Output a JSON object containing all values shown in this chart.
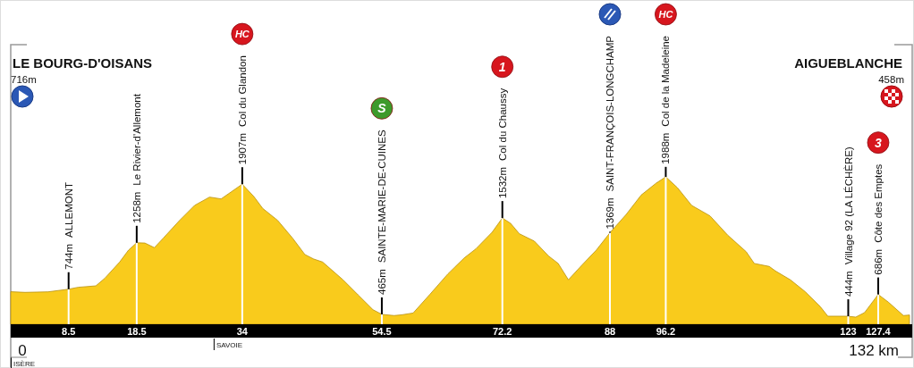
{
  "chart_data": {
    "type": "area",
    "color": "#f9cb1c",
    "x": [
      0,
      2.1,
      5.5,
      8.5,
      9.9,
      12.5,
      13.8,
      16.0,
      17.3,
      18.5,
      19.7,
      21.1,
      22.4,
      24.8,
      27.0,
      29.2,
      30.9,
      34,
      35.7,
      37.0,
      39.2,
      41.4,
      43.2,
      44.5,
      45.8,
      48.8,
      51.0,
      53.2,
      54.5,
      56.3,
      57.4,
      59.1,
      61.6,
      64.2,
      66.6,
      68.3,
      70.7,
      72.2,
      73.4,
      74.7,
      76.9,
      79.0,
      80.4,
      81.9,
      83.9,
      86.0,
      88,
      90.4,
      92.6,
      94.8,
      96.2,
      97.9,
      100.0,
      102.7,
      105.3,
      108.0,
      109.2,
      111.4,
      112.3,
      114.5,
      116.7,
      118.9,
      120.0,
      122.4,
      123,
      124.1,
      125.4,
      127.4,
      128.9,
      131.1,
      132
    ],
    "values": [
      716,
      709,
      715,
      744,
      765,
      781,
      864,
      1045,
      1177,
      1258,
      1255,
      1204,
      1309,
      1506,
      1672,
      1764,
      1744,
      1907,
      1771,
      1639,
      1506,
      1309,
      1128,
      1078,
      1045,
      848,
      682,
      517,
      465,
      452,
      460,
      480,
      690,
      913,
      1090,
      1190,
      1375,
      1532,
      1474,
      1358,
      1276,
      1111,
      1029,
      848,
      1012,
      1177,
      1369,
      1573,
      1787,
      1919,
      1988,
      1869,
      1672,
      1556,
      1342,
      1160,
      1029,
      996,
      946,
      848,
      715,
      550,
      445,
      445,
      444,
      435,
      485,
      686,
      600,
      452,
      458
    ],
    "value_labels": [
      null,
      null,
      null,
      "744m",
      null,
      null,
      null,
      null,
      null,
      "1258m",
      null,
      null,
      null,
      null,
      null,
      null,
      null,
      "1907m",
      null,
      null,
      null,
      null,
      null,
      null,
      null,
      null,
      null,
      null,
      "465m",
      null,
      null,
      null,
      null,
      null,
      null,
      null,
      null,
      "1532m",
      null,
      null,
      null,
      null,
      null,
      null,
      null,
      null,
      "1369m",
      null,
      null,
      null,
      "1988m",
      null,
      null,
      null,
      null,
      null,
      null,
      null,
      null,
      null,
      null,
      null,
      null,
      null,
      "444m",
      null,
      null,
      "686m",
      null,
      null,
      null
    ],
    "xlim": [
      0,
      132
    ],
    "xticks": [
      8.5,
      18.5,
      34,
      54.5,
      72.2,
      88,
      96.2,
      123,
      127.4
    ],
    "tick_labels": "x",
    "grid": "x",
    "annotations": [
      "LE BOURG-D'OISANS",
      "716m",
      "AIGUEBLANCHE",
      "458m",
      "0",
      "132 km",
      "ALLEMONT",
      "Le Rivier-d'Allemont",
      "Col du Glandon",
      "SAINTE-MARIE-DE-CUINES",
      "Col du Chaussy",
      "SAINT-FRANÇOIS-LONGCHAMP",
      "Col de la Madeleine",
      "Village 92 (LA LÉCHÈRE)",
      "Côte des Emptes",
      "HC",
      "S",
      "1",
      "HC",
      "3"
    ],
    "ref_lines": [
      {
        "axis": "x",
        "value": 0,
        "label": "ISÈRE"
      },
      {
        "axis": "x",
        "value": 29.8,
        "label": "SAVOIE"
      }
    ]
  }
}
